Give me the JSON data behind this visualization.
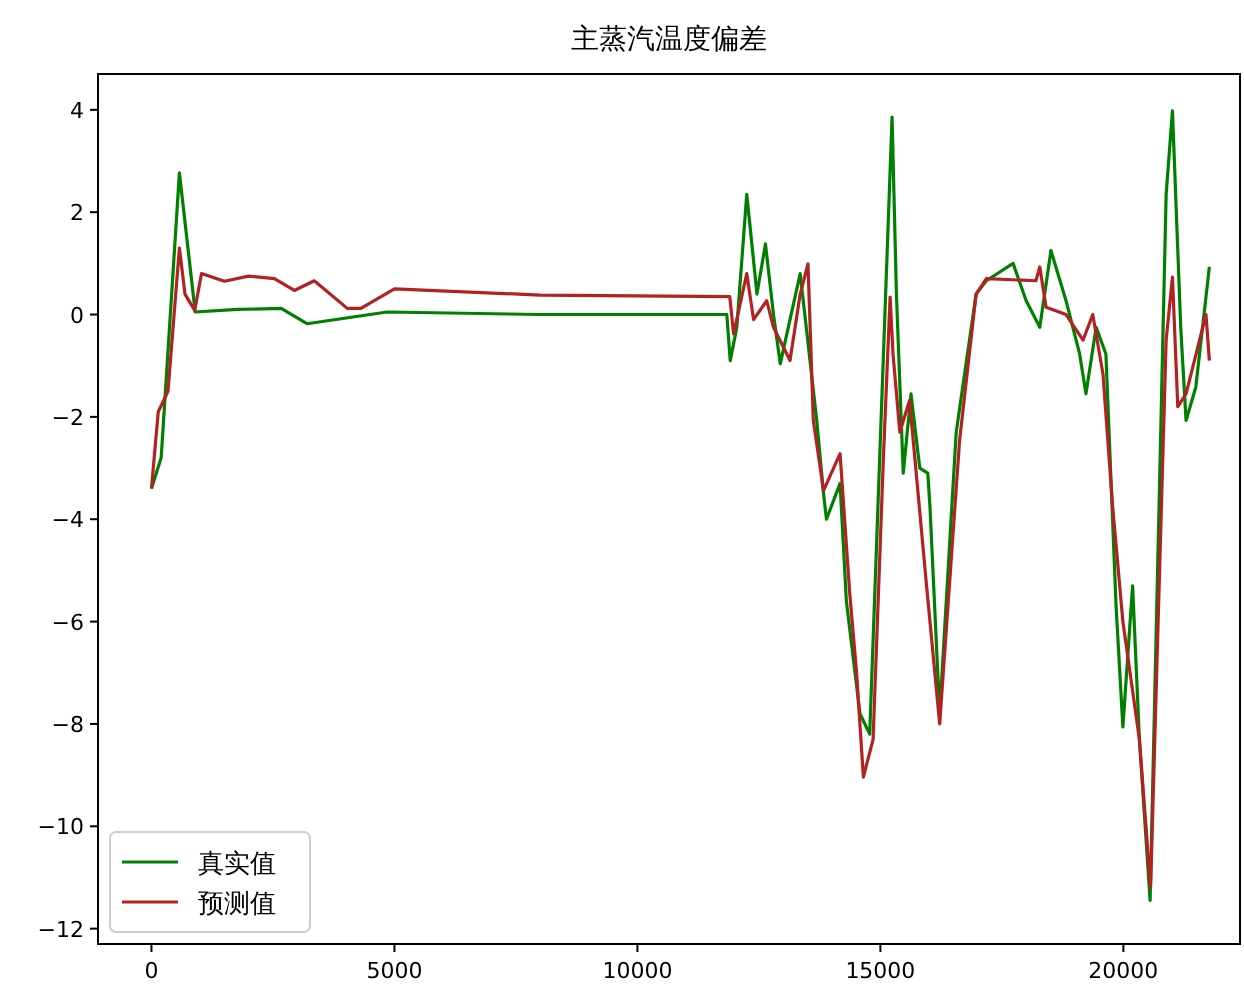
{
  "chart_data": {
    "type": "line",
    "title": "主蒸汽温度偏差",
    "xlim": [
      -1100,
      22400
    ],
    "ylim": [
      -12.3,
      4.7
    ],
    "xticks": [
      0,
      5000,
      10000,
      15000,
      20000
    ],
    "yticks": [
      {
        "value": -12,
        "label": "−12"
      },
      {
        "value": -10,
        "label": "−10"
      },
      {
        "value": -8,
        "label": "−8"
      },
      {
        "value": -6,
        "label": "−6"
      },
      {
        "value": -4,
        "label": "−4"
      },
      {
        "value": -2,
        "label": "−2"
      },
      0,
      2,
      4
    ],
    "grid": false,
    "legend": "bottom left",
    "line_style": "solid",
    "series": [
      {
        "name": "真实值",
        "color": "#008000",
        "x": [
          0,
          200,
          575,
          900,
          1770,
          2670,
          3200,
          4850,
          8000,
          11840,
          11910,
          12045,
          12250,
          12460,
          12635,
          12800,
          12940,
          13350,
          13690,
          13830,
          13890,
          14170,
          14300,
          14580,
          14780,
          15240,
          15330,
          15470,
          15630,
          15810,
          15975,
          16020,
          16220,
          16560,
          16970,
          17180,
          17730,
          18000,
          18280,
          18510,
          18820,
          19100,
          19230,
          19440,
          19640,
          19850,
          19990,
          20190,
          20330,
          20550,
          20880,
          21010,
          21180,
          21290,
          21490,
          21770
        ],
        "values": [
          -3.4,
          -2.8,
          2.77,
          0.05,
          0.1,
          0.12,
          -0.18,
          0.05,
          0,
          0,
          -0.9,
          -0.25,
          2.35,
          0.4,
          1.38,
          0,
          -0.96,
          0.8,
          -2.07,
          -3.5,
          -4.0,
          -3.3,
          -5.6,
          -7.8,
          -8.2,
          3.86,
          0.4,
          -3.1,
          -1.55,
          -3.0,
          -3.1,
          -3.75,
          -7.8,
          -2.3,
          0.4,
          0.66,
          1.0,
          0.27,
          -0.25,
          1.25,
          0.27,
          -0.77,
          -1.55,
          -0.25,
          -0.77,
          -5.7,
          -8.06,
          -5.3,
          -8.3,
          -11.45,
          2.35,
          3.98,
          -0.25,
          -2.07,
          -1.42,
          0.93
        ]
      },
      {
        "name": "预测值",
        "color": "#b22222",
        "x": [
          0,
          140,
          340,
          575,
          690,
          890,
          1030,
          1500,
          2000,
          2530,
          2940,
          3350,
          4030,
          4310,
          5000,
          8000,
          11900,
          11980,
          12250,
          12390,
          12660,
          12800,
          13140,
          13350,
          13510,
          13620,
          13830,
          14170,
          14370,
          14510,
          14650,
          14850,
          15060,
          15200,
          15260,
          15400,
          15600,
          15950,
          16220,
          16630,
          16970,
          17180,
          18200,
          18280,
          18410,
          18820,
          19170,
          19370,
          19580,
          19780,
          19990,
          20160,
          20330,
          20560,
          20880,
          21010,
          21120,
          21290,
          21700,
          21770
        ],
        "values": [
          -3.4,
          -1.9,
          -1.5,
          1.3,
          0.4,
          0.08,
          0.8,
          0.65,
          0.75,
          0.7,
          0.47,
          0.66,
          0.12,
          0.12,
          0.5,
          0.38,
          0.35,
          -0.38,
          0.8,
          -0.1,
          0.27,
          -0.25,
          -0.9,
          0.4,
          0.99,
          -2.07,
          -3.44,
          -2.72,
          -5.46,
          -7.0,
          -9.04,
          -8.3,
          -2.85,
          0.34,
          -0.77,
          -2.3,
          -1.68,
          -5.3,
          -8.0,
          -2.46,
          0.4,
          0.7,
          0.66,
          0.93,
          0.14,
          0.0,
          -0.5,
          0.0,
          -1.16,
          -3.76,
          -6.0,
          -7.15,
          -8.3,
          -11.2,
          -0.5,
          0.73,
          -1.8,
          -1.55,
          0,
          -0.9
        ]
      }
    ]
  }
}
